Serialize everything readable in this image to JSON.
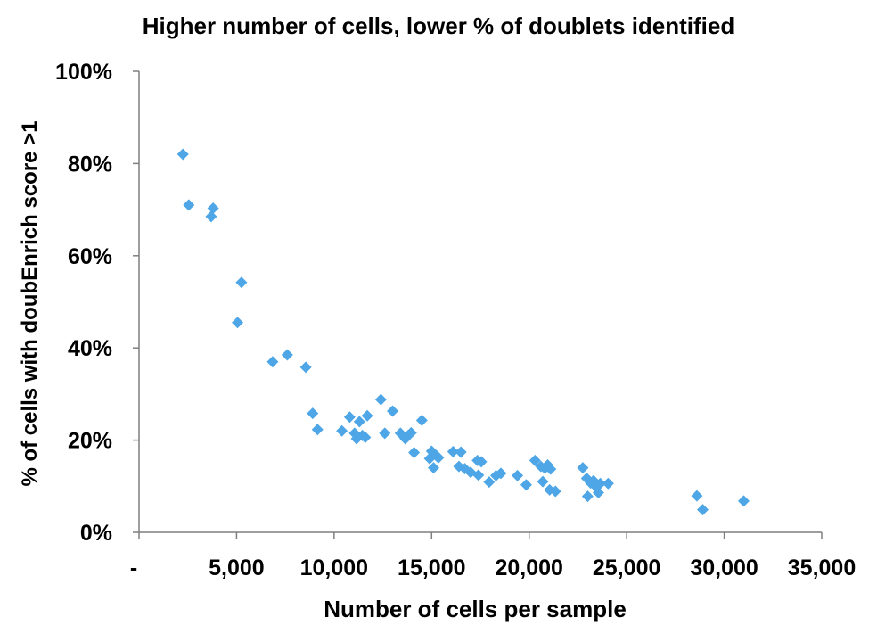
{
  "chart_data": {
    "type": "scatter",
    "title": "Higher number of cells, lower % of doublets identified",
    "xlabel": "Number of cells per sample",
    "ylabel": "% of cells with doubEnrich score >1",
    "xlim": [
      0,
      35000
    ],
    "ylim": [
      0,
      100
    ],
    "x_ticks": [
      0,
      5000,
      10000,
      15000,
      20000,
      25000,
      30000,
      35000
    ],
    "x_tick_labels": [
      "-",
      "5,000",
      "10,000",
      "15,000",
      "20,000",
      "25,000",
      "30,000",
      "35,000"
    ],
    "y_ticks": [
      0,
      20,
      40,
      60,
      80,
      100
    ],
    "y_tick_labels": [
      "0%",
      "20%",
      "40%",
      "60%",
      "80%",
      "100%"
    ],
    "grid": false,
    "legend": "none",
    "marker": "diamond",
    "color": "#4EA6E6",
    "points": [
      {
        "x": 2250,
        "y": 82
      },
      {
        "x": 2550,
        "y": 71
      },
      {
        "x": 3700,
        "y": 68.5
      },
      {
        "x": 3800,
        "y": 70.3
      },
      {
        "x": 5050,
        "y": 45.5
      },
      {
        "x": 5250,
        "y": 54.2
      },
      {
        "x": 6850,
        "y": 37
      },
      {
        "x": 7600,
        "y": 38.5
      },
      {
        "x": 8550,
        "y": 35.8
      },
      {
        "x": 8900,
        "y": 25.8
      },
      {
        "x": 9150,
        "y": 22.3
      },
      {
        "x": 10400,
        "y": 22
      },
      {
        "x": 10800,
        "y": 25
      },
      {
        "x": 11050,
        "y": 21.5
      },
      {
        "x": 11150,
        "y": 20.3
      },
      {
        "x": 11300,
        "y": 24
      },
      {
        "x": 11450,
        "y": 21
      },
      {
        "x": 11600,
        "y": 20.6
      },
      {
        "x": 11700,
        "y": 25.3
      },
      {
        "x": 12400,
        "y": 28.8
      },
      {
        "x": 12600,
        "y": 21.5
      },
      {
        "x": 13000,
        "y": 26.3
      },
      {
        "x": 13400,
        "y": 21.5
      },
      {
        "x": 13650,
        "y": 20.3
      },
      {
        "x": 13800,
        "y": 21
      },
      {
        "x": 13950,
        "y": 21.6
      },
      {
        "x": 14100,
        "y": 17.3
      },
      {
        "x": 14500,
        "y": 24.3
      },
      {
        "x": 14900,
        "y": 16
      },
      {
        "x": 15000,
        "y": 17.6
      },
      {
        "x": 15100,
        "y": 14
      },
      {
        "x": 15250,
        "y": 16.6
      },
      {
        "x": 15350,
        "y": 16.2
      },
      {
        "x": 16100,
        "y": 17.5
      },
      {
        "x": 16400,
        "y": 14.3
      },
      {
        "x": 16500,
        "y": 17.4
      },
      {
        "x": 16700,
        "y": 13.8
      },
      {
        "x": 17000,
        "y": 13
      },
      {
        "x": 17350,
        "y": 15.6
      },
      {
        "x": 17400,
        "y": 12.4
      },
      {
        "x": 17550,
        "y": 15.3
      },
      {
        "x": 17950,
        "y": 10.9
      },
      {
        "x": 18300,
        "y": 12.3
      },
      {
        "x": 18550,
        "y": 12.8
      },
      {
        "x": 19400,
        "y": 12.3
      },
      {
        "x": 19850,
        "y": 10.3
      },
      {
        "x": 20300,
        "y": 15.6
      },
      {
        "x": 20600,
        "y": 14.3
      },
      {
        "x": 20700,
        "y": 11
      },
      {
        "x": 20800,
        "y": 13.9
      },
      {
        "x": 20950,
        "y": 14.6
      },
      {
        "x": 21050,
        "y": 9.2
      },
      {
        "x": 21100,
        "y": 13.7
      },
      {
        "x": 21350,
        "y": 8.9
      },
      {
        "x": 22750,
        "y": 14
      },
      {
        "x": 22950,
        "y": 11.7
      },
      {
        "x": 23000,
        "y": 7.8
      },
      {
        "x": 23150,
        "y": 10.7
      },
      {
        "x": 23300,
        "y": 11.2
      },
      {
        "x": 23400,
        "y": 10
      },
      {
        "x": 23550,
        "y": 8.6
      },
      {
        "x": 23650,
        "y": 10.6
      },
      {
        "x": 24050,
        "y": 10.6
      },
      {
        "x": 28600,
        "y": 7.9
      },
      {
        "x": 28900,
        "y": 4.9
      },
      {
        "x": 31000,
        "y": 6.8
      }
    ]
  }
}
